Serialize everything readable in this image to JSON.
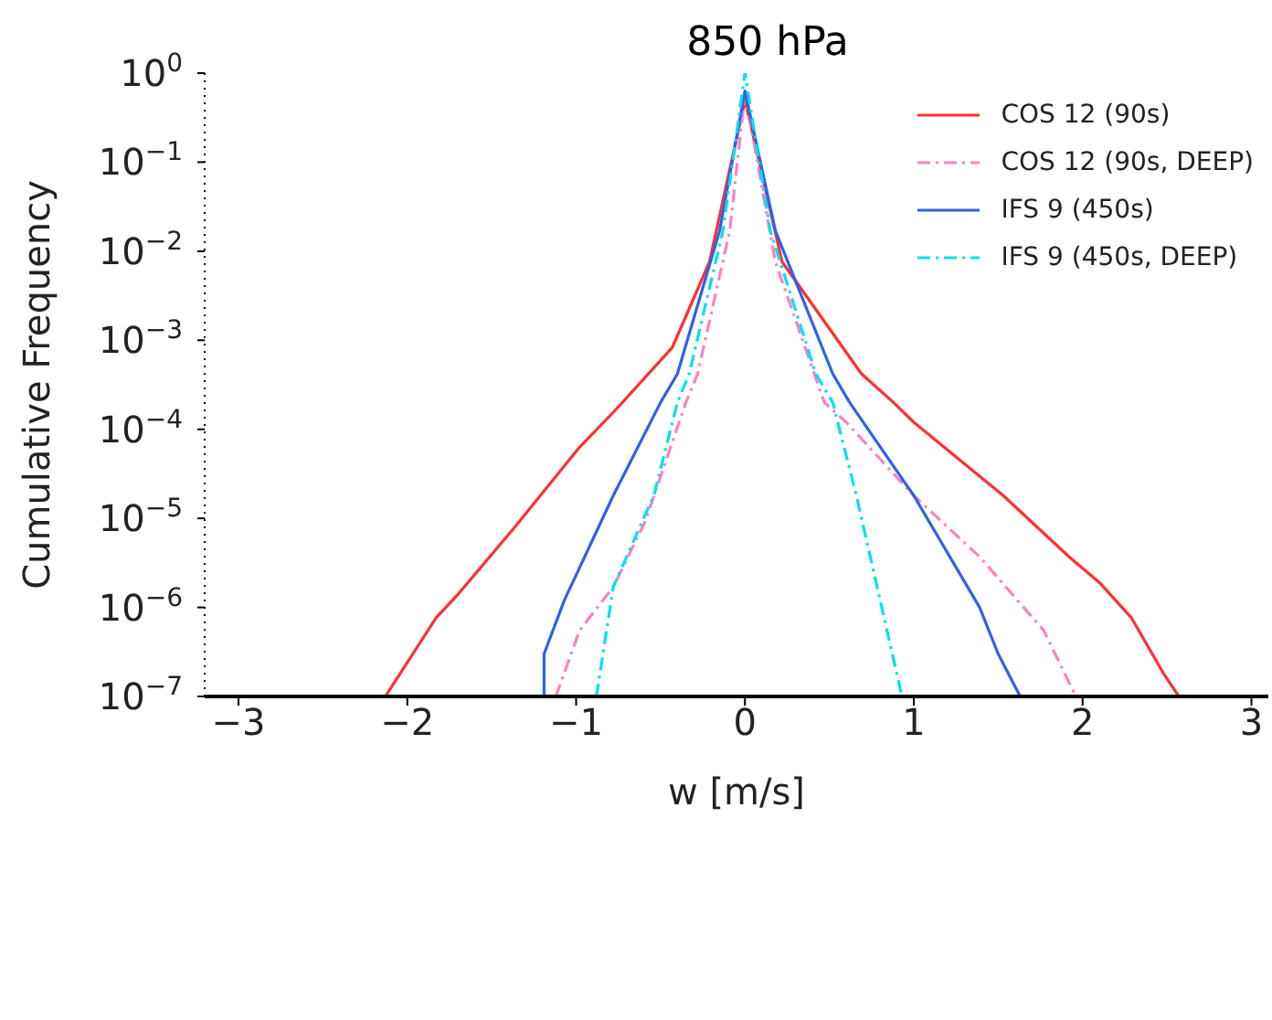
{
  "chart_data": {
    "type": "line",
    "title": "850 hPa",
    "xlabel": "w [m/s]",
    "ylabel": "Cumulative Frequency",
    "log": "y",
    "grid": false,
    "legend": "top right",
    "marker": "none",
    "xlim": [
      -3.2,
      3.1
    ],
    "xticks": [
      {
        "value": -3,
        "label": "−3"
      },
      {
        "value": -2,
        "label": "−2"
      },
      {
        "value": -1,
        "label": "−1"
      },
      0,
      1,
      2,
      3
    ],
    "ylim": [
      1e-07,
      1
    ],
    "yticks": [
      {
        "value": 1e-07,
        "label": "10$^{−7}$"
      },
      {
        "value": 1e-06,
        "label": "10$^{−6}$"
      },
      {
        "value": 1e-05,
        "label": "10$^{−5}$"
      },
      {
        "value": 0.0001,
        "label": "10$^{−4}$"
      },
      {
        "value": 0.001,
        "label": "10$^{−3}$"
      },
      {
        "value": 0.01,
        "label": "10$^{−2}$"
      },
      {
        "value": 0.1,
        "label": "10$^{−1}$"
      },
      {
        "value": 1,
        "label": "10$^{0}$"
      }
    ],
    "series": [
      {
        "name": "COS 12 (90s)",
        "color": "#ff3030",
        "line_style": "solid",
        "x": [
          -2.13,
          -1.83,
          -1.7,
          -1.36,
          -0.98,
          -0.76,
          -0.43,
          -0.21,
          0,
          0.22,
          0.69,
          0.88,
          1.0,
          1.53,
          1.92,
          2.1,
          2.29,
          2.48,
          2.57
        ],
        "values": [
          1e-07,
          7.6e-07,
          1.4e-06,
          8.1e-06,
          6.3e-05,
          0.00017,
          0.00083,
          0.0076,
          0.5,
          0.0076,
          0.00042,
          0.0002,
          0.00012,
          1.8e-05,
          3.7e-06,
          1.9e-06,
          7.6e-07,
          1.8e-07,
          1e-07
        ]
      },
      {
        "name": "COS 12 (90s, DEEP)",
        "color": "#ff80c0",
        "line_style": "dashed",
        "x": [
          -1.12,
          -0.98,
          -0.78,
          -0.59,
          -0.35,
          -0.28,
          -0.09,
          0,
          0.18,
          0.47,
          0.6,
          1.0,
          1.39,
          1.77,
          1.96
        ],
        "values": [
          1e-07,
          5.5e-07,
          1.7e-06,
          9.3e-06,
          0.0002,
          0.00042,
          0.017,
          0.6,
          0.0076,
          0.0002,
          0.00012,
          1.8e-05,
          3.7e-06,
          5.5e-07,
          1e-07
        ]
      },
      {
        "name": "IFS 9 (450s)",
        "color": "#3060e8",
        "line_style": "solid",
        "x": [
          -1.19,
          -1.19,
          -1.07,
          -0.78,
          -0.5,
          -0.4,
          -0.15,
          0,
          0.18,
          0.52,
          0.62,
          1.0,
          1.39,
          1.5,
          1.63
        ],
        "values": [
          1e-07,
          3e-07,
          1.2e-06,
          1.8e-05,
          0.0002,
          0.00042,
          0.017,
          0.63,
          0.017,
          0.00042,
          0.0002,
          1.8e-05,
          1e-06,
          3e-07,
          1e-07
        ]
      },
      {
        "name": "IFS 9 (450s, DEEP)",
        "color": "#00e0f0",
        "line_style": "dashed",
        "x": [
          -0.88,
          -0.78,
          -0.54,
          -0.4,
          -0.33,
          -0.13,
          0,
          0.15,
          0.42,
          0.52,
          0.66,
          0.93
        ],
        "values": [
          1e-07,
          1.7e-06,
          1.8e-05,
          0.0002,
          0.00042,
          0.017,
          1,
          0.017,
          0.00042,
          0.0002,
          1.8e-05,
          1e-07
        ]
      }
    ]
  }
}
